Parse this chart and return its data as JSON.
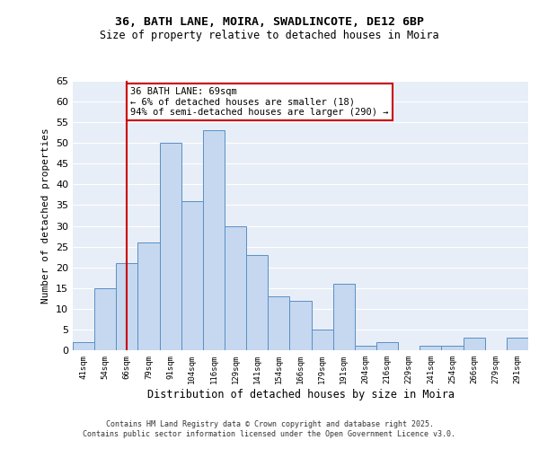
{
  "title1": "36, BATH LANE, MOIRA, SWADLINCOTE, DE12 6BP",
  "title2": "Size of property relative to detached houses in Moira",
  "xlabel": "Distribution of detached houses by size in Moira",
  "ylabel": "Number of detached properties",
  "bar_labels": [
    "41sqm",
    "54sqm",
    "66sqm",
    "79sqm",
    "91sqm",
    "104sqm",
    "116sqm",
    "129sqm",
    "141sqm",
    "154sqm",
    "166sqm",
    "179sqm",
    "191sqm",
    "204sqm",
    "216sqm",
    "229sqm",
    "241sqm",
    "254sqm",
    "266sqm",
    "279sqm",
    "291sqm"
  ],
  "bar_values": [
    2,
    15,
    21,
    26,
    50,
    36,
    53,
    30,
    23,
    13,
    12,
    5,
    16,
    1,
    2,
    0,
    1,
    1,
    3,
    0,
    3
  ],
  "bar_color": "#c5d8f0",
  "bar_edge_color": "#5a8fc3",
  "vline_x": 2,
  "vline_color": "#cc0000",
  "annotation_text": "36 BATH LANE: 69sqm\n← 6% of detached houses are smaller (18)\n94% of semi-detached houses are larger (290) →",
  "annotation_box_color": "#ffffff",
  "annotation_box_edge": "#cc0000",
  "ylim": [
    0,
    65
  ],
  "yticks": [
    0,
    5,
    10,
    15,
    20,
    25,
    30,
    35,
    40,
    45,
    50,
    55,
    60,
    65
  ],
  "bg_color": "#e8eef7",
  "grid_color": "#ffffff",
  "footer_line1": "Contains HM Land Registry data © Crown copyright and database right 2025.",
  "footer_line2": "Contains public sector information licensed under the Open Government Licence v3.0."
}
